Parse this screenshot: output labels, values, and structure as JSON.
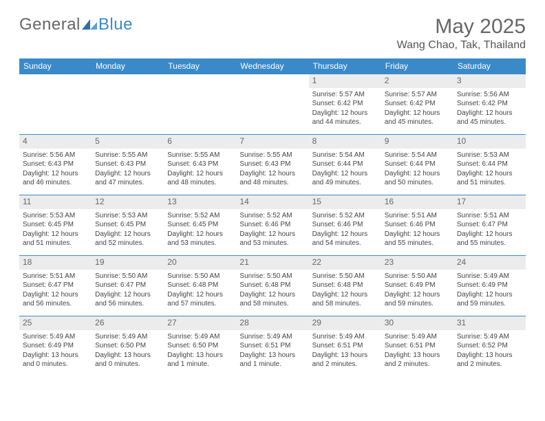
{
  "logo": {
    "text1": "General",
    "text2": "Blue"
  },
  "title": "May 2025",
  "location": "Wang Chao, Tak, Thailand",
  "colors": {
    "header_bg": "#3a8ac9",
    "header_text": "#ffffff",
    "daynum_bg": "#ececec",
    "border": "#3a8ac9",
    "body_text": "#444444",
    "title_text": "#666666"
  },
  "weekdays": [
    "Sunday",
    "Monday",
    "Tuesday",
    "Wednesday",
    "Thursday",
    "Friday",
    "Saturday"
  ],
  "weeks": [
    [
      null,
      null,
      null,
      null,
      {
        "n": "1",
        "sr": "5:57 AM",
        "ss": "6:42 PM",
        "dl": "12 hours and 44 minutes."
      },
      {
        "n": "2",
        "sr": "5:57 AM",
        "ss": "6:42 PM",
        "dl": "12 hours and 45 minutes."
      },
      {
        "n": "3",
        "sr": "5:56 AM",
        "ss": "6:42 PM",
        "dl": "12 hours and 45 minutes."
      }
    ],
    [
      {
        "n": "4",
        "sr": "5:56 AM",
        "ss": "6:43 PM",
        "dl": "12 hours and 46 minutes."
      },
      {
        "n": "5",
        "sr": "5:55 AM",
        "ss": "6:43 PM",
        "dl": "12 hours and 47 minutes."
      },
      {
        "n": "6",
        "sr": "5:55 AM",
        "ss": "6:43 PM",
        "dl": "12 hours and 48 minutes."
      },
      {
        "n": "7",
        "sr": "5:55 AM",
        "ss": "6:43 PM",
        "dl": "12 hours and 48 minutes."
      },
      {
        "n": "8",
        "sr": "5:54 AM",
        "ss": "6:44 PM",
        "dl": "12 hours and 49 minutes."
      },
      {
        "n": "9",
        "sr": "5:54 AM",
        "ss": "6:44 PM",
        "dl": "12 hours and 50 minutes."
      },
      {
        "n": "10",
        "sr": "5:53 AM",
        "ss": "6:44 PM",
        "dl": "12 hours and 51 minutes."
      }
    ],
    [
      {
        "n": "11",
        "sr": "5:53 AM",
        "ss": "6:45 PM",
        "dl": "12 hours and 51 minutes."
      },
      {
        "n": "12",
        "sr": "5:53 AM",
        "ss": "6:45 PM",
        "dl": "12 hours and 52 minutes."
      },
      {
        "n": "13",
        "sr": "5:52 AM",
        "ss": "6:45 PM",
        "dl": "12 hours and 53 minutes."
      },
      {
        "n": "14",
        "sr": "5:52 AM",
        "ss": "6:46 PM",
        "dl": "12 hours and 53 minutes."
      },
      {
        "n": "15",
        "sr": "5:52 AM",
        "ss": "6:46 PM",
        "dl": "12 hours and 54 minutes."
      },
      {
        "n": "16",
        "sr": "5:51 AM",
        "ss": "6:46 PM",
        "dl": "12 hours and 55 minutes."
      },
      {
        "n": "17",
        "sr": "5:51 AM",
        "ss": "6:47 PM",
        "dl": "12 hours and 55 minutes."
      }
    ],
    [
      {
        "n": "18",
        "sr": "5:51 AM",
        "ss": "6:47 PM",
        "dl": "12 hours and 56 minutes."
      },
      {
        "n": "19",
        "sr": "5:50 AM",
        "ss": "6:47 PM",
        "dl": "12 hours and 56 minutes."
      },
      {
        "n": "20",
        "sr": "5:50 AM",
        "ss": "6:48 PM",
        "dl": "12 hours and 57 minutes."
      },
      {
        "n": "21",
        "sr": "5:50 AM",
        "ss": "6:48 PM",
        "dl": "12 hours and 58 minutes."
      },
      {
        "n": "22",
        "sr": "5:50 AM",
        "ss": "6:48 PM",
        "dl": "12 hours and 58 minutes."
      },
      {
        "n": "23",
        "sr": "5:50 AM",
        "ss": "6:49 PM",
        "dl": "12 hours and 59 minutes."
      },
      {
        "n": "24",
        "sr": "5:49 AM",
        "ss": "6:49 PM",
        "dl": "12 hours and 59 minutes."
      }
    ],
    [
      {
        "n": "25",
        "sr": "5:49 AM",
        "ss": "6:49 PM",
        "dl": "13 hours and 0 minutes."
      },
      {
        "n": "26",
        "sr": "5:49 AM",
        "ss": "6:50 PM",
        "dl": "13 hours and 0 minutes."
      },
      {
        "n": "27",
        "sr": "5:49 AM",
        "ss": "6:50 PM",
        "dl": "13 hours and 1 minute."
      },
      {
        "n": "28",
        "sr": "5:49 AM",
        "ss": "6:51 PM",
        "dl": "13 hours and 1 minute."
      },
      {
        "n": "29",
        "sr": "5:49 AM",
        "ss": "6:51 PM",
        "dl": "13 hours and 2 minutes."
      },
      {
        "n": "30",
        "sr": "5:49 AM",
        "ss": "6:51 PM",
        "dl": "13 hours and 2 minutes."
      },
      {
        "n": "31",
        "sr": "5:49 AM",
        "ss": "6:52 PM",
        "dl": "13 hours and 2 minutes."
      }
    ]
  ],
  "labels": {
    "sunrise": "Sunrise: ",
    "sunset": "Sunset: ",
    "daylight": "Daylight: "
  }
}
